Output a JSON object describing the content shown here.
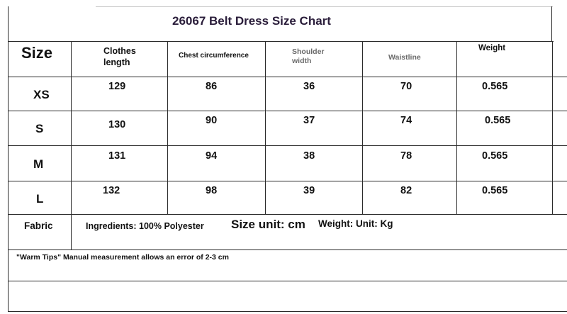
{
  "title": "26067 Belt Dress Size Chart",
  "headers": {
    "size": "Size",
    "clothes_length_1": "Clothes",
    "clothes_length_2": "length",
    "chest": "Chest circumference",
    "shoulder_1": "Shoulder",
    "shoulder_2": "width",
    "waist": "Waistline",
    "weight": "Weight"
  },
  "rows": [
    {
      "size": "XS",
      "length": "129",
      "chest": "86",
      "shoulder": "36",
      "waist": "70",
      "weight": "0.565"
    },
    {
      "size": "S",
      "length": "130",
      "chest": "90",
      "shoulder": "37",
      "waist": "74",
      "weight": "0.565"
    },
    {
      "size": "M",
      "length": "131",
      "chest": "94",
      "shoulder": "38",
      "waist": "78",
      "weight": "0.565"
    },
    {
      "size": "L",
      "length": "132",
      "chest": "98",
      "shoulder": "39",
      "waist": "82",
      "weight": "0.565"
    }
  ],
  "fabric": {
    "label": "Fabric",
    "ingredients": "Ingredients: 100% Polyester",
    "size_unit": "Size unit: cm",
    "weight_unit": "Weight: Unit: Kg"
  },
  "warm_tip": "\"Warm Tips\" Manual measurement allows an error of 2-3 cm"
}
